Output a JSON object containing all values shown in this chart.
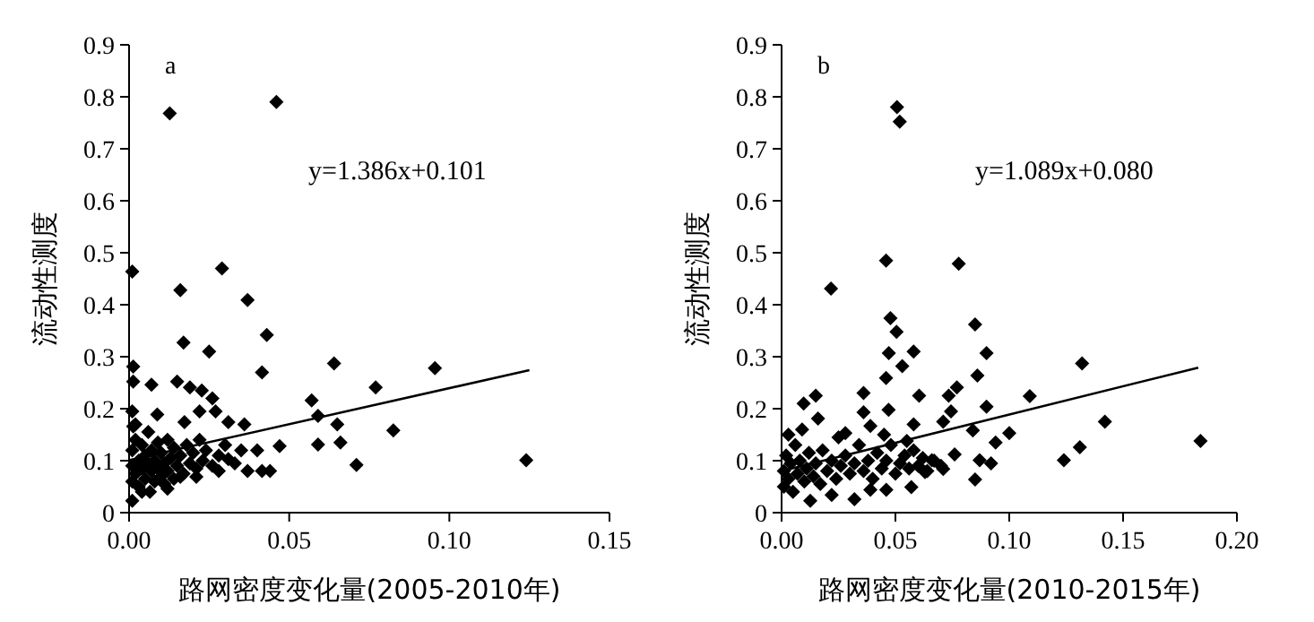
{
  "chart_data": [
    {
      "type": "scatter",
      "xlabel": "路网密度变化量(2005-2010年)",
      "ylabel": "流动性测度",
      "annotations": [
        "a",
        "y=1.386x+0.101"
      ],
      "grid": false,
      "xlim": [
        0,
        0.15
      ],
      "xticks": [
        {
          "value": 0,
          "label": "0.00"
        },
        {
          "value": 0.05,
          "label": "0.05"
        },
        {
          "value": 0.1,
          "label": "0.10"
        },
        {
          "value": 0.15,
          "label": "0.15"
        }
      ],
      "ylim": [
        0,
        0.9
      ],
      "yticks": [
        0,
        0.1,
        0.2,
        0.3,
        0.4,
        0.5,
        0.6,
        0.7,
        0.8,
        0.9
      ],
      "series": [
        {
          "marker": "diamond",
          "color": "#000000",
          "x": [
            0.046,
            0.0127,
            0.001,
            0.029,
            0.016,
            0.037,
            0.017,
            0.025,
            0.043,
            0.0415,
            0.064,
            0.0955,
            0.077,
            0.057,
            0.059,
            0.065,
            0.066,
            0.059,
            0.0825,
            0.071,
            0.124,
            0.047,
            0.0013,
            0.0013,
            0.007,
            0.015,
            0.019,
            0.0227,
            0.026,
            0.027,
            0.031,
            0.036,
            0.022,
            0.0173,
            0.0088,
            0.001,
            0.0013,
            0.04,
            0.0415,
            0.037,
            0.044,
            0.031,
            0.028,
            0.021,
            0.016,
            0.012,
            0.0065,
            0.001,
            0.001,
            0.001,
            0.001,
            0.002,
            0.002,
            0.003,
            0.003,
            0.004,
            0.004,
            0.005,
            0.005,
            0.006,
            0.006,
            0.007,
            0.007,
            0.008,
            0.008,
            0.009,
            0.009,
            0.01,
            0.01,
            0.011,
            0.012,
            0.012,
            0.013,
            0.014,
            0.014,
            0.015,
            0.016,
            0.017,
            0.018,
            0.019,
            0.02,
            0.021,
            0.022,
            0.023,
            0.024,
            0.026,
            0.028,
            0.03,
            0.033,
            0.035,
            0.002,
            0.004,
            0.011
          ],
          "values": [
            0.79,
            0.768,
            0.464,
            0.47,
            0.428,
            0.409,
            0.327,
            0.31,
            0.342,
            0.27,
            0.287,
            0.278,
            0.241,
            0.216,
            0.186,
            0.17,
            0.135,
            0.131,
            0.158,
            0.092,
            0.101,
            0.128,
            0.281,
            0.252,
            0.246,
            0.252,
            0.241,
            0.235,
            0.22,
            0.195,
            0.174,
            0.17,
            0.195,
            0.174,
            0.189,
            0.195,
            0.166,
            0.12,
            0.08,
            0.08,
            0.08,
            0.103,
            0.08,
            0.069,
            0.069,
            0.046,
            0.04,
            0.023,
            0.06,
            0.09,
            0.12,
            0.14,
            0.075,
            0.1,
            0.05,
            0.085,
            0.13,
            0.065,
            0.11,
            0.095,
            0.155,
            0.08,
            0.12,
            0.06,
            0.1,
            0.135,
            0.085,
            0.07,
            0.115,
            0.095,
            0.14,
            0.08,
            0.105,
            0.065,
            0.125,
            0.09,
            0.11,
            0.075,
            0.13,
            0.095,
            0.115,
            0.085,
            0.14,
            0.1,
            0.12,
            0.09,
            0.11,
            0.13,
            0.095,
            0.12,
            0.17,
            0.04,
            0.055
          ]
        },
        {
          "type": "line",
          "marker": "none",
          "color": "#000000",
          "x": [
            0,
            0.125
          ],
          "values": [
            0.101,
            0.274
          ]
        }
      ]
    },
    {
      "type": "scatter",
      "xlabel": "路网密度变化量(2010-2015年)",
      "ylabel": "流动性测度",
      "annotations": [
        "b",
        "y=1.089x+0.080"
      ],
      "grid": false,
      "xlim": [
        0,
        0.2
      ],
      "xticks": [
        {
          "value": 0,
          "label": "0.00"
        },
        {
          "value": 0.05,
          "label": "0.05"
        },
        {
          "value": 0.1,
          "label": "0.10"
        },
        {
          "value": 0.15,
          "label": "0.15"
        },
        {
          "value": 0.2,
          "label": "0.20"
        }
      ],
      "ylim": [
        0,
        0.9
      ],
      "yticks": [
        0,
        0.1,
        0.2,
        0.3,
        0.4,
        0.5,
        0.6,
        0.7,
        0.8,
        0.9
      ],
      "series": [
        {
          "marker": "diamond",
          "color": "#000000",
          "x": [
            0.0507,
            0.0519,
            0.0459,
            0.0778,
            0.0217,
            0.085,
            0.0478,
            0.0505,
            0.0471,
            0.058,
            0.09,
            0.086,
            0.132,
            0.053,
            0.0459,
            0.036,
            0.015,
            0.0097,
            0.077,
            0.0734,
            0.109,
            0.0604,
            0.09,
            0.0744,
            0.142,
            0.1,
            0.094,
            0.184,
            0.131,
            0.124,
            0.084,
            0.085,
            0.092,
            0.087,
            0.076,
            0.071,
            0.047,
            0.036,
            0.039,
            0.028,
            0.016,
            0.058,
            0.055,
            0.063,
            0.057,
            0.046,
            0.039,
            0.032,
            0.022,
            0.0126,
            0.066,
            0.071,
            0.001,
            0.001,
            0.002,
            0.003,
            0.004,
            0.005,
            0.006,
            0.007,
            0.008,
            0.01,
            0.011,
            0.012,
            0.014,
            0.015,
            0.017,
            0.018,
            0.02,
            0.022,
            0.024,
            0.026,
            0.028,
            0.03,
            0.032,
            0.034,
            0.036,
            0.038,
            0.04,
            0.042,
            0.044,
            0.046,
            0.048,
            0.05,
            0.052,
            0.054,
            0.056,
            0.058,
            0.06,
            0.062,
            0.064,
            0.067,
            0.07,
            0.003,
            0.009,
            0.025,
            0.045
          ],
          "values": [
            0.78,
            0.752,
            0.485,
            0.479,
            0.431,
            0.362,
            0.374,
            0.348,
            0.307,
            0.31,
            0.307,
            0.264,
            0.287,
            0.282,
            0.259,
            0.23,
            0.225,
            0.21,
            0.241,
            0.225,
            0.224,
            0.225,
            0.204,
            0.195,
            0.175,
            0.153,
            0.135,
            0.138,
            0.126,
            0.101,
            0.158,
            0.064,
            0.095,
            0.101,
            0.112,
            0.175,
            0.198,
            0.193,
            0.167,
            0.153,
            0.181,
            0.17,
            0.138,
            0.078,
            0.049,
            0.044,
            0.044,
            0.026,
            0.034,
            0.023,
            0.101,
            0.084,
            0.05,
            0.08,
            0.11,
            0.065,
            0.095,
            0.04,
            0.13,
            0.075,
            0.1,
            0.06,
            0.085,
            0.115,
            0.07,
            0.095,
            0.055,
            0.12,
            0.08,
            0.1,
            0.065,
            0.09,
            0.11,
            0.075,
            0.095,
            0.13,
            0.08,
            0.1,
            0.065,
            0.115,
            0.085,
            0.1,
            0.13,
            0.075,
            0.095,
            0.11,
            0.085,
            0.12,
            0.09,
            0.105,
            0.08,
            0.1,
            0.09,
            0.15,
            0.16,
            0.145,
            0.15
          ]
        },
        {
          "type": "line",
          "marker": "none",
          "color": "#000000",
          "x": [
            0,
            0.183
          ],
          "values": [
            0.08,
            0.279
          ]
        }
      ]
    }
  ]
}
